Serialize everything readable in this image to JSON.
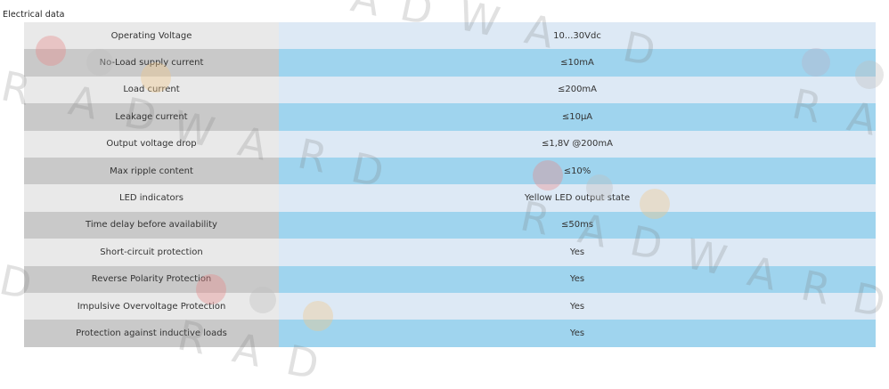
{
  "section": {
    "title": "Electrical data"
  },
  "rows": [
    {
      "label": "Operating Voltage",
      "value": "10...30Vdc"
    },
    {
      "label": "No-Load supply current",
      "value": "≤10mA"
    },
    {
      "label": "Load current",
      "value": "≤200mA"
    },
    {
      "label": "Leakage current",
      "value": "≤10µA"
    },
    {
      "label": "Output voltage drop",
      "value": "≤1,8V @200mA"
    },
    {
      "label": "Max ripple content",
      "value": "≤10%"
    },
    {
      "label": "LED indicators",
      "value": "Yellow LED output state"
    },
    {
      "label": "Time delay before availability",
      "value": "≤50ms"
    },
    {
      "label": "Short-circuit protection",
      "value": "Yes"
    },
    {
      "label": "Reverse Polarity Protection",
      "value": "Yes"
    },
    {
      "label": "Impulsive Overvoltage Protection",
      "value": "Yes"
    },
    {
      "label": "Protection against inductive loads",
      "value": "Yes"
    }
  ],
  "watermark": {
    "text": "RADWARD",
    "colors": [
      "#e8888a",
      "#c0c0c0",
      "#f2c88a",
      "#b8b4c8"
    ]
  }
}
